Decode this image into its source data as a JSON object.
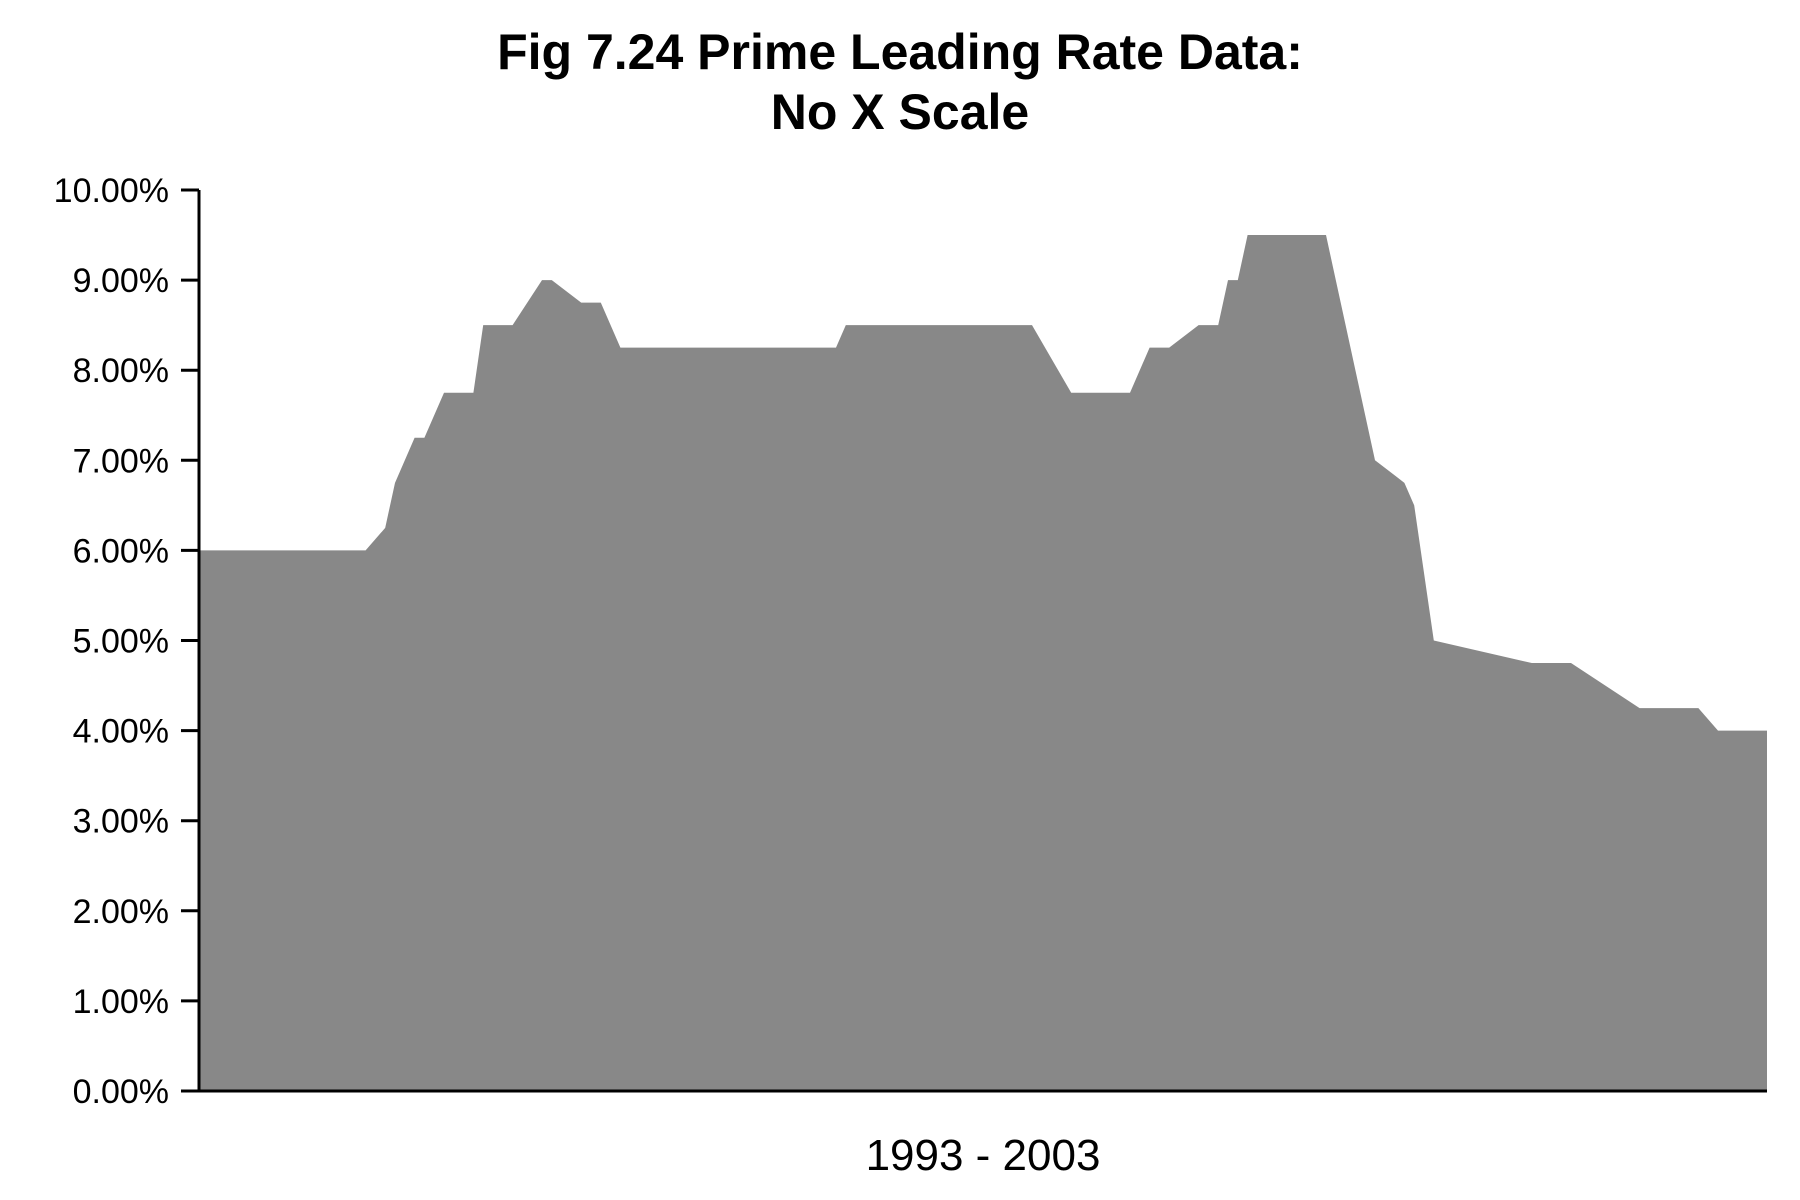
{
  "chart_data": {
    "type": "area",
    "title_lines": [
      "Fig 7.24 Prime Leading Rate Data:",
      "No X Scale"
    ],
    "xlabel": "1993 - 2003",
    "ylabel": "",
    "ylim": [
      0,
      10
    ],
    "y_ticks": [
      0,
      1,
      2,
      3,
      4,
      5,
      6,
      7,
      8,
      9,
      10
    ],
    "y_tick_labels": [
      "0.00%",
      "1.00%",
      "2.00%",
      "3.00%",
      "4.00%",
      "5.00%",
      "6.00%",
      "7.00%",
      "8.00%",
      "9.00%",
      "10.00%"
    ],
    "x_ticks_shown": false,
    "grid": false,
    "legend": "none",
    "fill_color": "#888888",
    "axis_color": "#000000",
    "n_periods": 130,
    "series": [
      {
        "x": [
          0,
          6,
          13,
          17,
          19,
          20,
          22,
          23,
          25,
          28,
          29,
          32,
          35,
          36,
          39,
          41,
          43,
          47,
          50,
          52,
          55,
          57,
          65,
          66,
          70,
          77,
          82,
          84,
          85,
          89,
          91,
          93,
          95,
          97,
          99,
          102,
          104,
          105,
          106,
          107,
          110,
          115,
          116,
          117,
          118,
          119,
          120,
          123,
          124,
          126,
          136,
          140,
          147,
          153,
          155,
          160
        ],
        "values": [
          6.0,
          6.0,
          6.0,
          6.0,
          6.25,
          6.75,
          7.25,
          7.25,
          7.75,
          7.75,
          8.5,
          8.5,
          9.0,
          9.0,
          8.75,
          8.75,
          8.25,
          8.25,
          8.25,
          8.25,
          8.25,
          8.25,
          8.25,
          8.5,
          8.5,
          8.5,
          8.5,
          8.5,
          8.5,
          7.75,
          7.75,
          7.75,
          7.75,
          8.25,
          8.25,
          8.5,
          8.5,
          9.0,
          9.0,
          9.5,
          9.5,
          9.5,
          9.0,
          8.5,
          8.0,
          7.5,
          7.0,
          6.75,
          6.5,
          5.0,
          4.75,
          4.75,
          4.25,
          4.25,
          4.0,
          4.0
        ]
      }
    ]
  }
}
